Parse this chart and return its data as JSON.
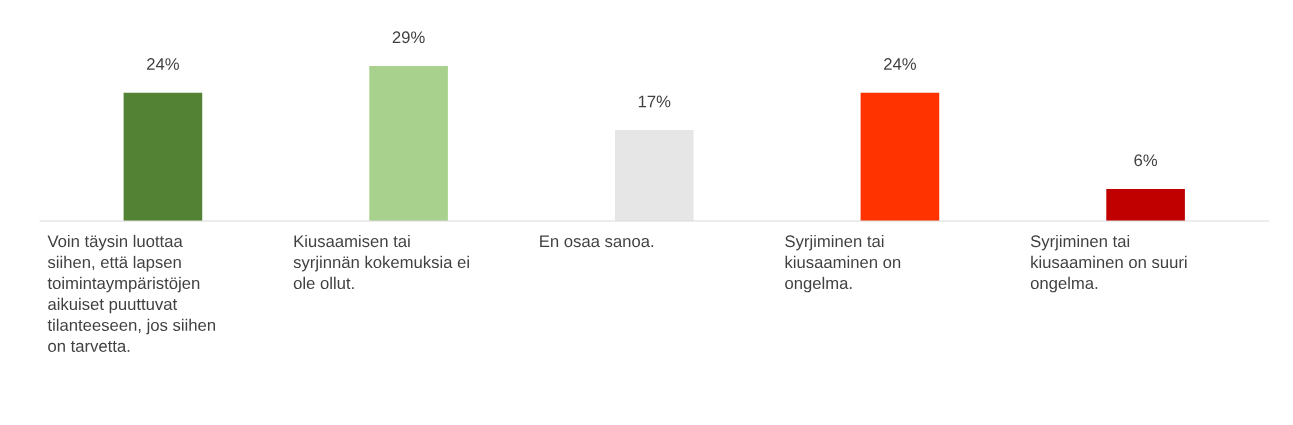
{
  "chart_data": {
    "type": "bar",
    "categories": [
      "Voin täysin luottaa\nsiihen, että lapsen\ntoimintaympäristöjen\naikuiset puuttuvat\ntilanteeseen, jos siihen\non tarvetta.",
      "Kiusaamisen tai\nsyrjinnän kokemuksia ei\nole ollut.",
      "En osaa sanoa.",
      "Syrjiminen tai\nkiusaaminen on\nongelma.",
      "Syrjiminen tai\nkiusaaminen on suuri\nongelma."
    ],
    "values": [
      24,
      29,
      17,
      24,
      6
    ],
    "colors": [
      "#548235",
      "#a9d18e",
      "#e7e6e6",
      "#ff3300",
      "#c00000"
    ],
    "value_labels": [
      "24%",
      "29%",
      "17%",
      "24%",
      "6%"
    ]
  }
}
